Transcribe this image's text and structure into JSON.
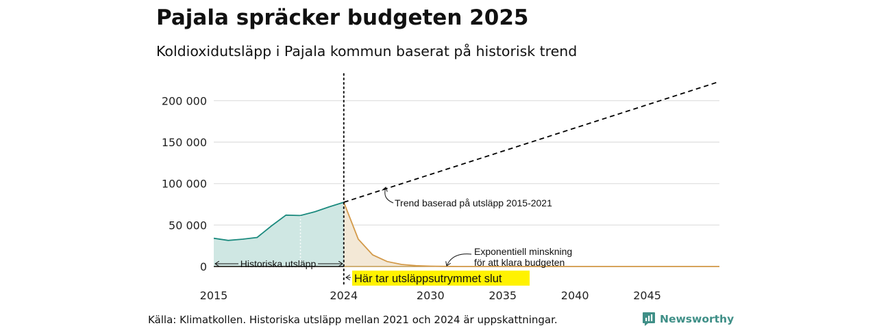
{
  "header": {
    "title": "Pajala spräcker budgeten 2025",
    "subtitle": "Koldioxidutsläpp i Pajala kommun baserat på historisk trend"
  },
  "footer": {
    "source": "Källa: Klimatkollen. Historiska utsläpp mellan 2021 och 2024 är uppskattningar.",
    "brand": "Newsworthy",
    "brand_color": "#3f8f87"
  },
  "chart_data": {
    "type": "area",
    "title": "Pajala spräcker budgeten 2025",
    "subtitle": "Koldioxidutsläpp i Pajala kommun baserat på historisk trend",
    "xlabel": "",
    "ylabel": "",
    "xlim": [
      2015,
      2050
    ],
    "ylim": [
      0,
      225000
    ],
    "x_ticks": [
      {
        "value": 2015,
        "label": "2015"
      },
      {
        "value": 2024,
        "label": "2024"
      },
      {
        "value": 2030,
        "label": "2030"
      },
      {
        "value": 2035,
        "label": "2035"
      },
      {
        "value": 2040,
        "label": "2040"
      },
      {
        "value": 2045,
        "label": "2045"
      }
    ],
    "y_ticks": [
      {
        "value": 0,
        "label": "0"
      },
      {
        "value": 50000,
        "label": "50 000"
      },
      {
        "value": 100000,
        "label": "100 000"
      },
      {
        "value": 150000,
        "label": "150 000"
      },
      {
        "value": 200000,
        "label": "200 000"
      }
    ],
    "grid": true,
    "colors": {
      "historical_line": "#1b8a7e",
      "historical_fill": "#cfe7e3",
      "reduction_line": "#d39a4a",
      "reduction_fill": "#f3e8d6",
      "trend_line": "#000000",
      "highlight": "#fff200"
    },
    "series": [
      {
        "id": "historical",
        "style": "solid-area",
        "points": [
          [
            2015,
            34000
          ],
          [
            2016,
            31500
          ],
          [
            2017,
            33000
          ],
          [
            2018,
            35000
          ],
          [
            2019,
            49000
          ],
          [
            2020,
            62000
          ],
          [
            2021,
            61500
          ],
          [
            2022,
            66000
          ],
          [
            2023,
            72000
          ],
          [
            2024,
            77500
          ]
        ]
      },
      {
        "id": "trend",
        "style": "dashed",
        "points": [
          [
            2024,
            77500
          ],
          [
            2050,
            223000
          ]
        ]
      },
      {
        "id": "reduction",
        "style": "solid-area",
        "points": [
          [
            2024,
            77500
          ],
          [
            2025,
            33000
          ],
          [
            2026,
            14000
          ],
          [
            2027,
            6000
          ],
          [
            2028,
            2500
          ],
          [
            2029,
            1000
          ],
          [
            2030,
            400
          ],
          [
            2031,
            150
          ],
          [
            2032,
            0
          ],
          [
            2050,
            0
          ]
        ]
      }
    ],
    "markers": [
      {
        "type": "vline",
        "x": 2024,
        "style": "dotted"
      }
    ],
    "annotations": [
      {
        "id": "trend_label",
        "lines": [
          "Trend baserad på utsläpp 2015-2021"
        ]
      },
      {
        "id": "reduction_label",
        "lines": [
          "Exponentiell minskning",
          "för att klara budgeten"
        ]
      },
      {
        "id": "historical_label",
        "lines": [
          "Historiska utsläpp"
        ]
      },
      {
        "id": "budget_end_label",
        "lines": [
          "Här tar utsläppsutrymmet slut"
        ]
      }
    ]
  }
}
